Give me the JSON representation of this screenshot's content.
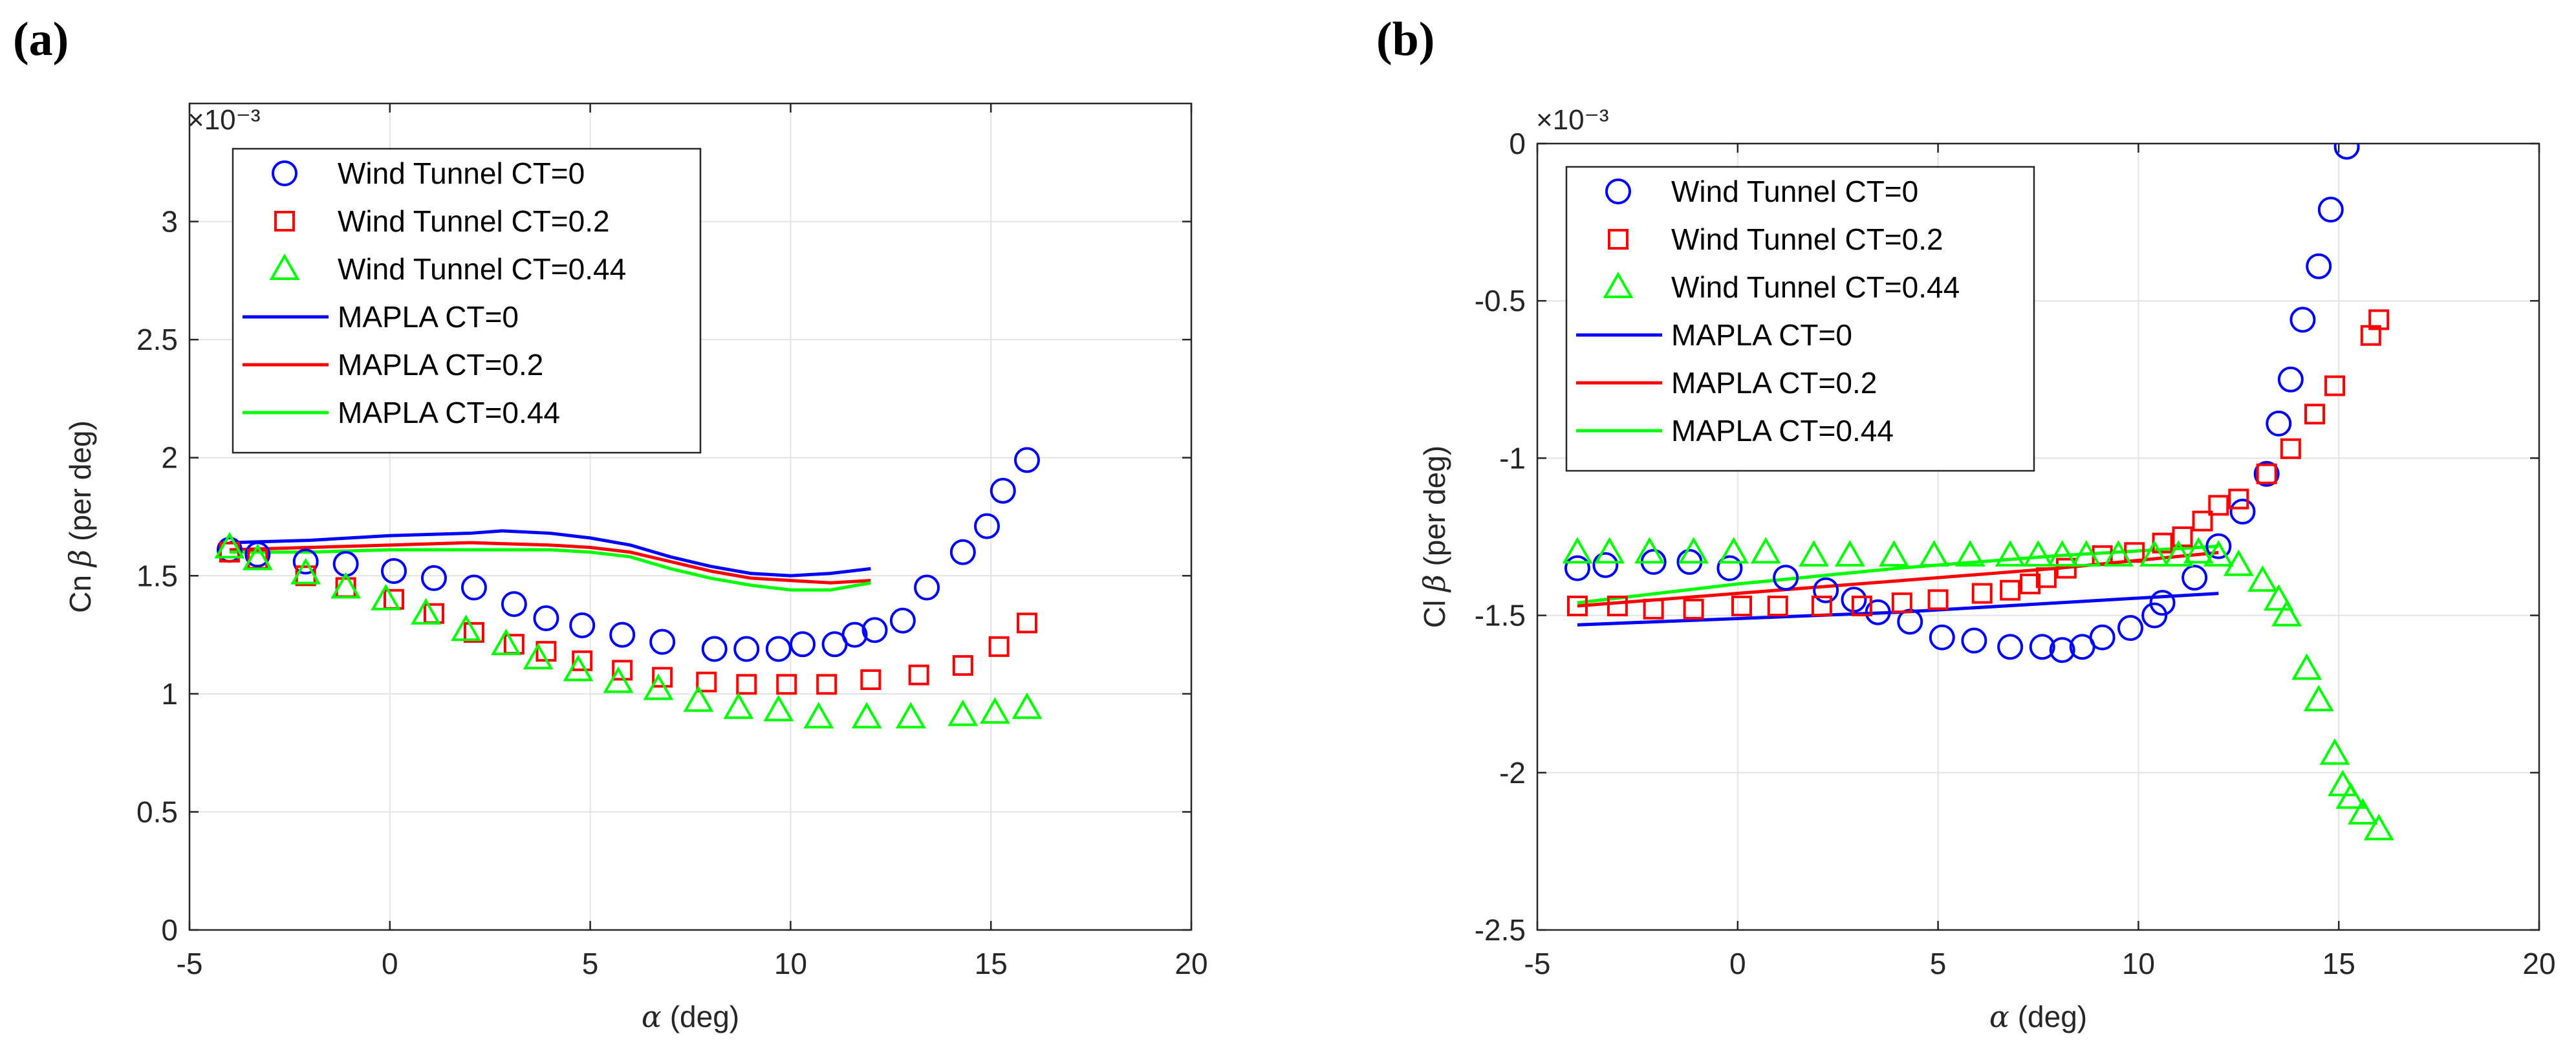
{
  "colors": {
    "ct0": "#0000FF",
    "ct02": "#FF0000",
    "ct044": "#00FF00",
    "grid": "#E3E3E3",
    "axis": "#262626"
  },
  "chart_data": [
    {
      "type": "scatter",
      "panel_label": "(a)",
      "title": "",
      "xlabel": "α (deg)",
      "ylabel": "Cn β (per deg)",
      "exponent_label": "×10⁻³",
      "xlim": [
        -5,
        20
      ],
      "ylim": [
        0,
        3.5
      ],
      "xticks": [
        -5,
        0,
        5,
        10,
        15,
        20
      ],
      "xtick_labels": [
        "-5",
        "0",
        "5",
        "10",
        "15",
        "20"
      ],
      "yticks": [
        0,
        0.5,
        1,
        1.5,
        2,
        2.5,
        3
      ],
      "ytick_labels": [
        "0",
        "0.5",
        "1",
        "1.5",
        "2",
        "2.5",
        "3"
      ],
      "grid": true,
      "legend_position": "top-left",
      "legend": [
        "Wind Tunnel CT=0",
        "Wind Tunnel CT=0.2",
        "Wind Tunnel CT=0.44",
        "MAPLA CT=0",
        "MAPLA CT=0.2",
        "MAPLA CT=0.44"
      ],
      "series": [
        {
          "name": "Wind Tunnel CT=0",
          "marker": "circle",
          "color": "#0000FF",
          "x": [
            -4,
            -3.3,
            -2.1,
            -1.1,
            0.1,
            1.1,
            2.1,
            3.1,
            3.9,
            4.8,
            5.8,
            6.8,
            8.1,
            8.9,
            9.7,
            10.3,
            11.1,
            11.6,
            12.1,
            12.8,
            13.4,
            14.3,
            14.9,
            15.3,
            15.9
          ],
          "y": [
            1.61,
            1.59,
            1.56,
            1.55,
            1.52,
            1.49,
            1.45,
            1.38,
            1.32,
            1.29,
            1.25,
            1.22,
            1.19,
            1.19,
            1.19,
            1.21,
            1.21,
            1.25,
            1.27,
            1.31,
            1.45,
            1.6,
            1.71,
            1.86,
            1.99
          ]
        },
        {
          "name": "Wind Tunnel CT=0.2",
          "marker": "square",
          "color": "#FF0000",
          "x": [
            -4,
            -3.3,
            -2.1,
            -1.1,
            0.1,
            1.1,
            2.1,
            3.1,
            3.9,
            4.8,
            5.8,
            6.8,
            7.9,
            8.9,
            9.9,
            10.9,
            12.0,
            13.2,
            14.3,
            15.2,
            15.9
          ],
          "y": [
            1.6,
            1.57,
            1.5,
            1.45,
            1.4,
            1.34,
            1.26,
            1.21,
            1.18,
            1.14,
            1.1,
            1.07,
            1.05,
            1.04,
            1.04,
            1.04,
            1.06,
            1.08,
            1.12,
            1.2,
            1.3
          ]
        },
        {
          "name": "Wind Tunnel CT=0.44",
          "marker": "triangle",
          "color": "#00FF00",
          "x": [
            -4,
            -3.3,
            -2.1,
            -1.1,
            -0.1,
            0.9,
            1.9,
            2.9,
            3.7,
            4.7,
            5.7,
            6.7,
            7.7,
            8.7,
            9.7,
            10.7,
            11.9,
            13.0,
            14.3,
            15.1,
            15.9
          ],
          "y": [
            1.62,
            1.57,
            1.51,
            1.45,
            1.4,
            1.34,
            1.27,
            1.21,
            1.15,
            1.1,
            1.05,
            1.02,
            0.97,
            0.94,
            0.93,
            0.9,
            0.9,
            0.9,
            0.91,
            0.92,
            0.94
          ]
        },
        {
          "name": "MAPLA CT=0",
          "marker": "line",
          "color": "#0000FF",
          "x": [
            -4,
            -2,
            0,
            2,
            2.8,
            4,
            5,
            6,
            7,
            8,
            9,
            10,
            11,
            12
          ],
          "y": [
            1.64,
            1.65,
            1.67,
            1.68,
            1.69,
            1.68,
            1.66,
            1.63,
            1.58,
            1.54,
            1.51,
            1.5,
            1.51,
            1.53
          ]
        },
        {
          "name": "MAPLA CT=0.2",
          "marker": "line",
          "color": "#FF0000",
          "x": [
            -4,
            -2,
            0,
            2,
            4,
            5,
            6,
            7,
            8,
            9,
            10,
            11,
            12
          ],
          "y": [
            1.61,
            1.62,
            1.63,
            1.64,
            1.63,
            1.62,
            1.6,
            1.56,
            1.52,
            1.49,
            1.48,
            1.47,
            1.48
          ]
        },
        {
          "name": "MAPLA CT=0.44",
          "marker": "line",
          "color": "#00FF00",
          "x": [
            -4,
            -2,
            0,
            2,
            4,
            5,
            6,
            7,
            8,
            9,
            10,
            11,
            12
          ],
          "y": [
            1.6,
            1.6,
            1.61,
            1.61,
            1.61,
            1.6,
            1.58,
            1.53,
            1.49,
            1.46,
            1.44,
            1.44,
            1.47
          ]
        }
      ]
    },
    {
      "type": "scatter",
      "panel_label": "(b)",
      "title": "",
      "xlabel": "α (deg)",
      "ylabel": "Cl β (per deg)",
      "exponent_label": "×10⁻³",
      "xlim": [
        -5,
        20
      ],
      "ylim": [
        -2.5,
        0
      ],
      "xticks": [
        -5,
        0,
        5,
        10,
        15,
        20
      ],
      "xtick_labels": [
        "-5",
        "0",
        "5",
        "10",
        "15",
        "20"
      ],
      "yticks": [
        -2.5,
        -2,
        -1.5,
        -1,
        -0.5,
        0
      ],
      "ytick_labels": [
        "-2.5",
        "-2",
        "-1.5",
        "-1",
        "-0.5",
        "0"
      ],
      "grid": true,
      "legend_position": "top-left",
      "legend": [
        "Wind Tunnel CT=0",
        "Wind Tunnel CT=0.2",
        "Wind Tunnel CT=0.44",
        "MAPLA CT=0",
        "MAPLA CT=0.2",
        "MAPLA CT=0.44"
      ],
      "series": [
        {
          "name": "Wind Tunnel CT=0",
          "marker": "circle",
          "color": "#0000FF",
          "x": [
            -4,
            -3.3,
            -2.1,
            -1.2,
            -0.2,
            1.2,
            2.2,
            2.9,
            3.5,
            4.3,
            5.1,
            5.9,
            6.8,
            7.6,
            8.1,
            8.6,
            9.1,
            9.8,
            10.4,
            10.6,
            11.4,
            12.0,
            12.6,
            13.2,
            13.5,
            13.8,
            14.1,
            14.5,
            14.8,
            15.2
          ],
          "y": [
            -1.35,
            -1.34,
            -1.33,
            -1.33,
            -1.35,
            -1.38,
            -1.42,
            -1.45,
            -1.49,
            -1.52,
            -1.57,
            -1.58,
            -1.6,
            -1.6,
            -1.61,
            -1.6,
            -1.57,
            -1.54,
            -1.5,
            -1.46,
            -1.38,
            -1.28,
            -1.17,
            -1.05,
            -0.89,
            -0.75,
            -0.56,
            -0.39,
            -0.21,
            -0.01
          ]
        },
        {
          "name": "Wind Tunnel CT=0.2",
          "marker": "square",
          "color": "#FF0000",
          "x": [
            -4,
            -3.0,
            -2.1,
            -1.1,
            0.1,
            1.0,
            2.1,
            3.1,
            4.1,
            5.0,
            6.1,
            6.8,
            7.3,
            7.7,
            8.2,
            9.1,
            9.9,
            10.6,
            11.1,
            11.6,
            12.0,
            12.5,
            13.2,
            13.8,
            14.4,
            14.9,
            15.8,
            16.0
          ],
          "y": [
            -1.47,
            -1.47,
            -1.48,
            -1.48,
            -1.47,
            -1.47,
            -1.47,
            -1.47,
            -1.46,
            -1.45,
            -1.43,
            -1.42,
            -1.4,
            -1.38,
            -1.35,
            -1.31,
            -1.3,
            -1.27,
            -1.25,
            -1.2,
            -1.15,
            -1.13,
            -1.05,
            -0.97,
            -0.86,
            -0.77,
            -0.61,
            -0.56
          ]
        },
        {
          "name": "Wind Tunnel CT=0.44",
          "marker": "triangle",
          "color": "#00FF00",
          "x": [
            -4,
            -3.2,
            -2.2,
            -1.1,
            -0.1,
            0.7,
            1.9,
            2.8,
            3.9,
            4.9,
            5.8,
            6.8,
            7.5,
            8.1,
            8.7,
            9.5,
            10.4,
            11.0,
            11.5,
            12.0,
            12.5,
            13.1,
            13.5,
            13.7,
            14.2,
            14.5,
            14.9,
            15.1,
            15.3,
            15.6,
            16.0
          ],
          "y": [
            -1.3,
            -1.3,
            -1.3,
            -1.3,
            -1.3,
            -1.3,
            -1.31,
            -1.31,
            -1.31,
            -1.31,
            -1.31,
            -1.31,
            -1.31,
            -1.31,
            -1.31,
            -1.31,
            -1.31,
            -1.31,
            -1.3,
            -1.31,
            -1.34,
            -1.39,
            -1.45,
            -1.5,
            -1.67,
            -1.77,
            -1.94,
            -2.04,
            -2.08,
            -2.13,
            -2.18
          ]
        },
        {
          "name": "MAPLA CT=0",
          "marker": "line",
          "color": "#0000FF",
          "x": [
            -4,
            0,
            4,
            8,
            12
          ],
          "y": [
            -1.53,
            -1.51,
            -1.49,
            -1.46,
            -1.43
          ]
        },
        {
          "name": "MAPLA CT=0.2",
          "marker": "line",
          "color": "#FF0000",
          "x": [
            -4,
            0,
            4,
            8,
            12
          ],
          "y": [
            -1.47,
            -1.43,
            -1.39,
            -1.35,
            -1.3
          ]
        },
        {
          "name": "MAPLA CT=0.44",
          "marker": "line",
          "color": "#00FF00",
          "x": [
            -4,
            0,
            4,
            8,
            12
          ],
          "y": [
            -1.46,
            -1.4,
            -1.35,
            -1.31,
            -1.28
          ]
        }
      ]
    }
  ]
}
